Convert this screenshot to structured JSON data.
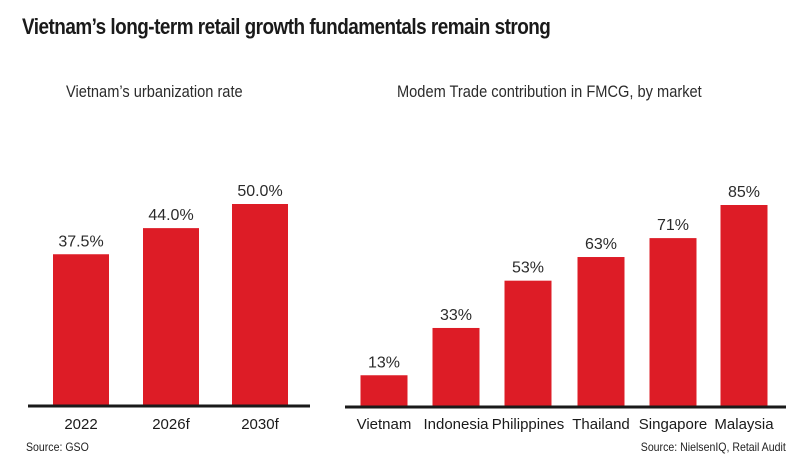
{
  "header": {
    "title": "Vietnam’s long-term retail growth fundamentals remain strong"
  },
  "colors": {
    "bar": "#dd1c26",
    "axis": "#1a1a1a"
  },
  "chart_data": [
    {
      "type": "bar",
      "title": "Vietnam’s urbanization rate",
      "categories": [
        "2022",
        "2026f",
        "2030f"
      ],
      "values": [
        37.5,
        44.0,
        50.0
      ],
      "value_labels": [
        "37.5%",
        "44.0%",
        "50.0%"
      ],
      "xlabel": "",
      "ylabel": "",
      "ylim": [
        0,
        50
      ],
      "grid": false,
      "source": "Source: GSO"
    },
    {
      "type": "bar",
      "title": "Modem Trade contribution in FMCG, by market",
      "categories": [
        "Vietnam",
        "Indonesia",
        "Philippines",
        "Thailand",
        "Singapore",
        "Malaysia"
      ],
      "values": [
        13,
        33,
        53,
        63,
        71,
        85
      ],
      "value_labels": [
        "13%",
        "33%",
        "53%",
        "63%",
        "71%",
        "85%"
      ],
      "xlabel": "",
      "ylabel": "",
      "ylim": [
        0,
        85
      ],
      "grid": false,
      "source": "Source: NielsenIQ, Retail Audit"
    }
  ]
}
